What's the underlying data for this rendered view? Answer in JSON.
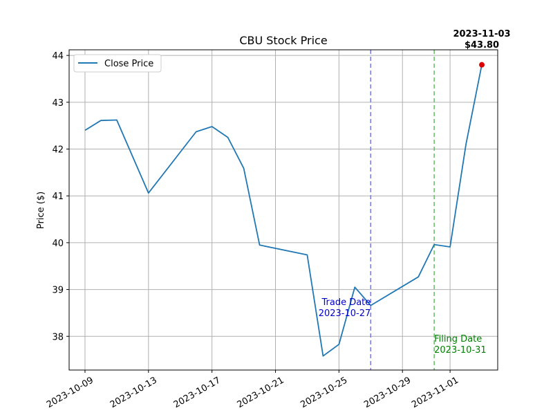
{
  "chart_data": {
    "type": "line",
    "title": "CBU Stock Price",
    "xlabel": "",
    "ylabel": "Price ($)",
    "ylim": [
      37.28,
      44.12
    ],
    "xlim": [
      "2023-10-08",
      "2023-11-04"
    ],
    "grid": true,
    "legend_placement": "top-left",
    "x_ticks": [
      "2023-10-09",
      "2023-10-13",
      "2023-10-17",
      "2023-10-21",
      "2023-10-25",
      "2023-10-29",
      "2023-11-01"
    ],
    "y_ticks": [
      38,
      39,
      40,
      41,
      42,
      43,
      44
    ],
    "series": [
      {
        "name": "Close Price",
        "color": "#1f77b4",
        "x": [
          "2023-10-09",
          "2023-10-10",
          "2023-10-11",
          "2023-10-13",
          "2023-10-16",
          "2023-10-17",
          "2023-10-18",
          "2023-10-19",
          "2023-10-20",
          "2023-10-23",
          "2023-10-24",
          "2023-10-25",
          "2023-10-26",
          "2023-10-27",
          "2023-10-30",
          "2023-10-31",
          "2023-11-01",
          "2023-11-02",
          "2023-11-03"
        ],
        "values": [
          42.4,
          42.61,
          42.62,
          41.06,
          42.37,
          42.48,
          42.25,
          41.59,
          39.95,
          39.74,
          37.58,
          37.83,
          39.05,
          38.66,
          39.27,
          39.96,
          39.91,
          42.1,
          43.8
        ]
      }
    ],
    "vlines": [
      {
        "date": "2023-10-27",
        "color": "#7777dd",
        "label_lines": [
          "Trade Date",
          "2023-10-27"
        ],
        "label_color": "#0000cc"
      },
      {
        "date": "2023-10-31",
        "color": "#66bb66",
        "label_lines": [
          "Filing Date",
          "2023-10-31"
        ],
        "label_color": "#008000"
      }
    ],
    "highlight": {
      "date": "2023-11-03",
      "value": 43.8,
      "color": "#dd0000",
      "label_lines": [
        "2023-11-03",
        "$43.80"
      ]
    }
  }
}
